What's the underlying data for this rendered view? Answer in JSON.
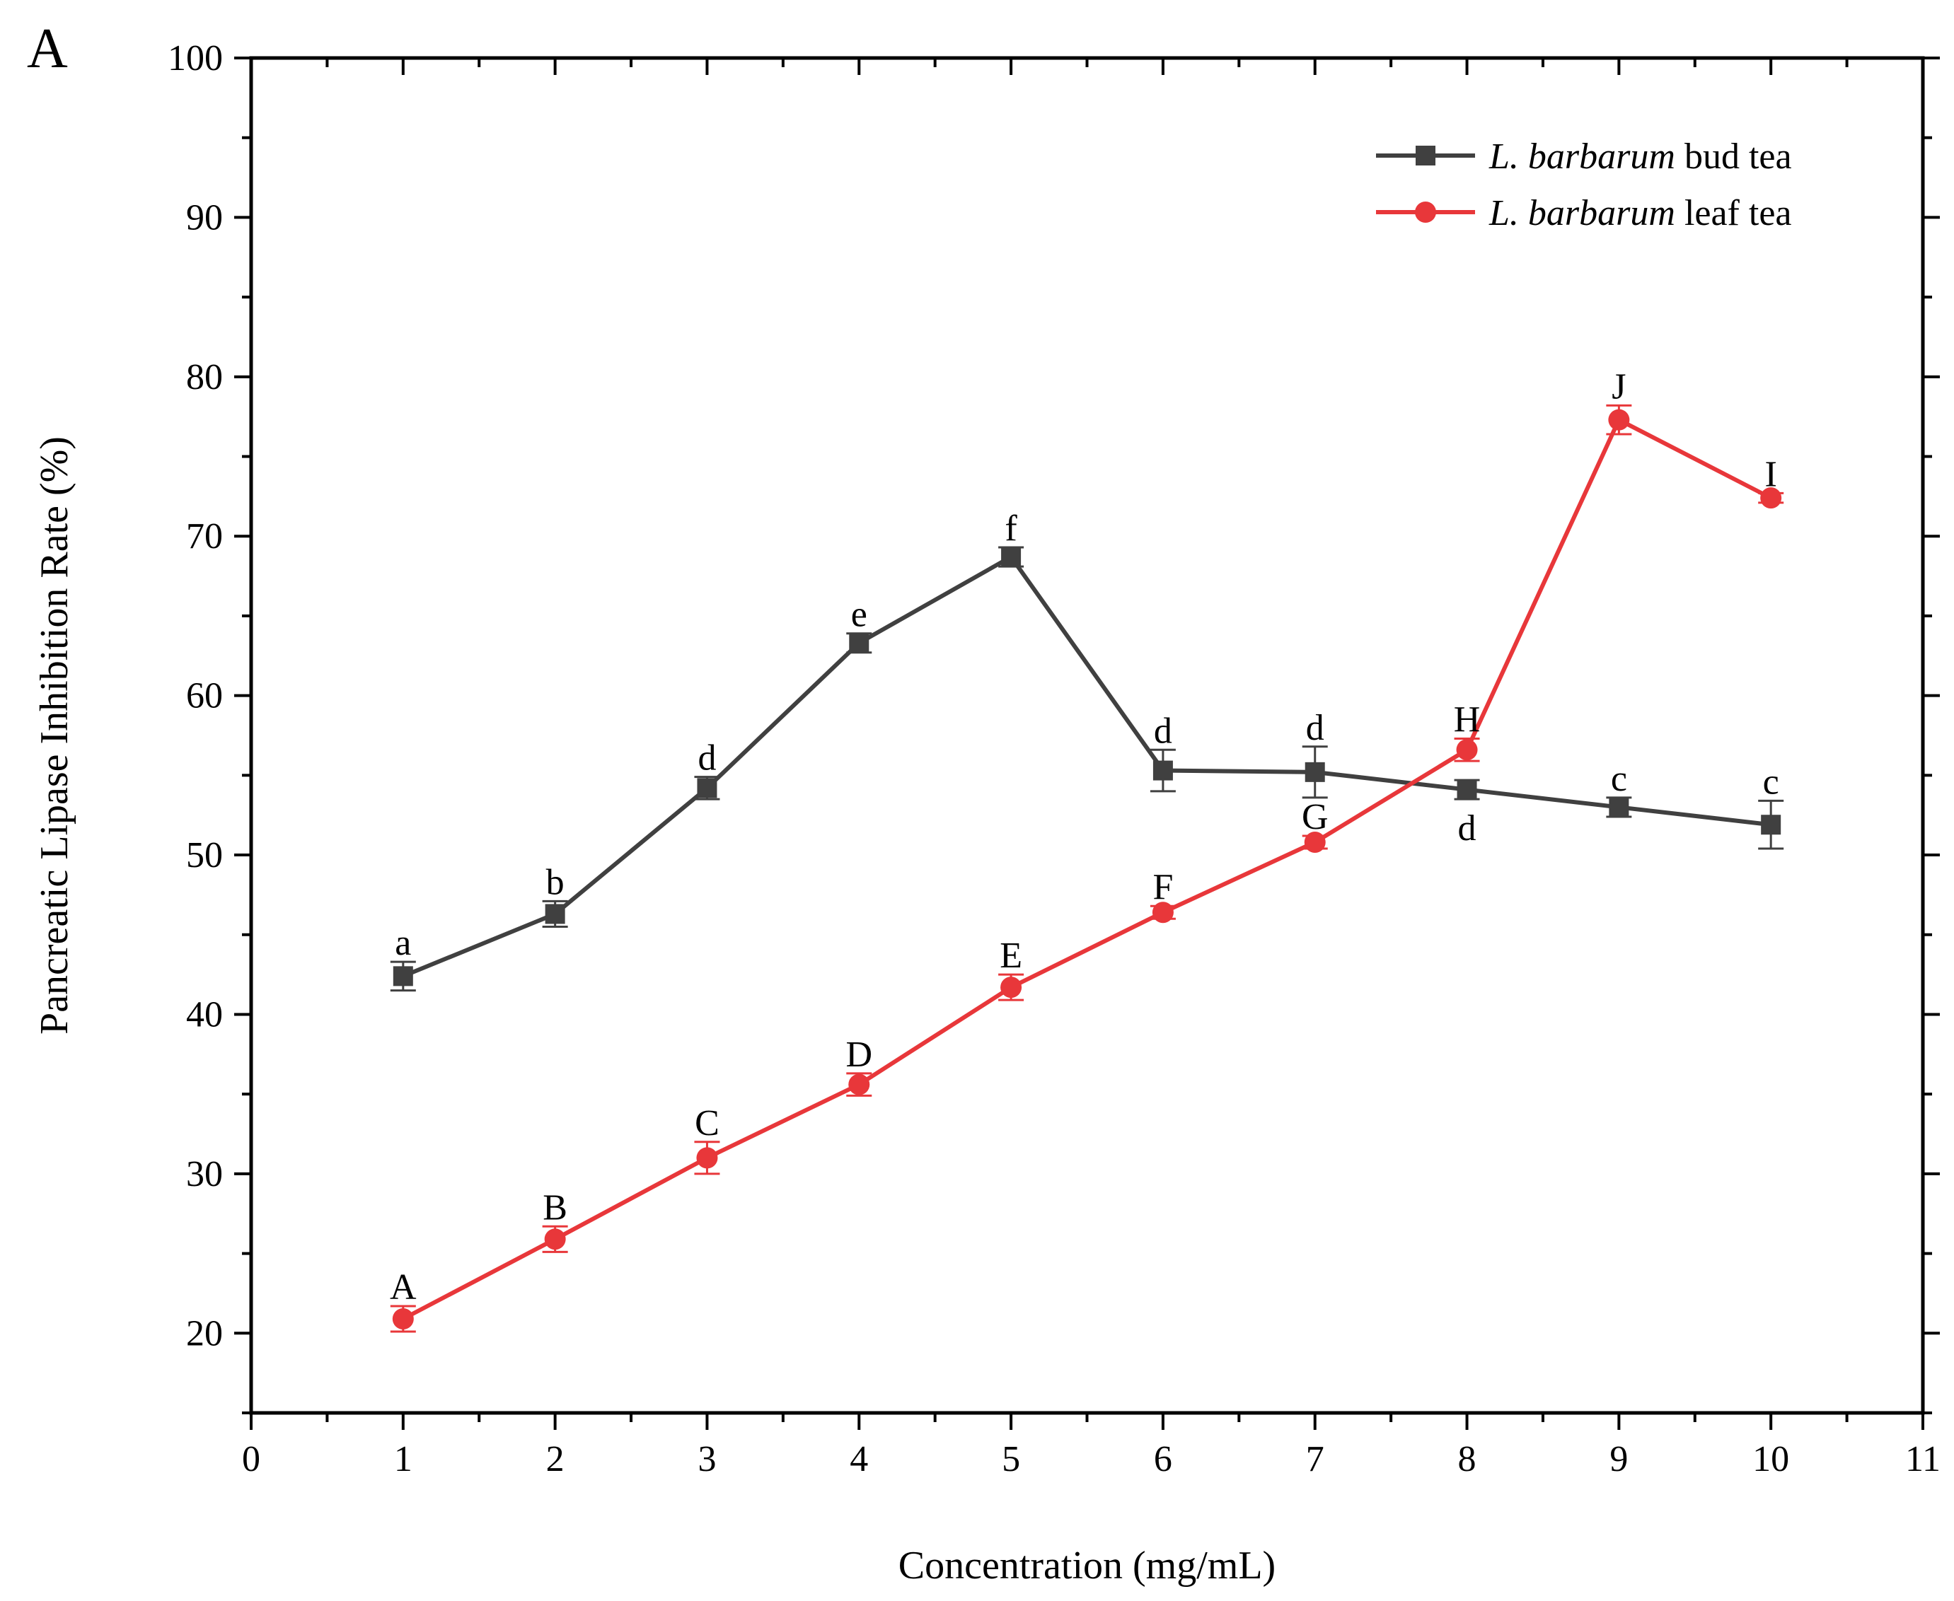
{
  "panel_label": "A",
  "chart_data": {
    "type": "line",
    "title": "",
    "xlabel": "Concentration (mg/mL)",
    "ylabel": "Pancreatic Lipase Inhibition Rate (%)",
    "xlim": [
      0,
      11
    ],
    "ylim": [
      15,
      100
    ],
    "x_ticks": [
      0,
      1,
      2,
      3,
      4,
      5,
      6,
      7,
      8,
      9,
      10,
      11
    ],
    "y_ticks": [
      20,
      30,
      40,
      50,
      60,
      70,
      80,
      90,
      100
    ],
    "x": [
      1,
      2,
      3,
      4,
      5,
      6,
      7,
      8,
      9,
      10
    ],
    "legend_position": "top-right",
    "series": [
      {
        "name": "L. barbarum bud tea",
        "name_italic": "L. barbarum",
        "name_rest": " bud tea",
        "color": "#404040",
        "marker": "square",
        "values": [
          42.4,
          46.3,
          54.2,
          63.3,
          68.7,
          55.3,
          55.2,
          54.1,
          53.0,
          51.9
        ],
        "errors": [
          0.9,
          0.8,
          0.7,
          0.6,
          0.6,
          1.3,
          1.6,
          0.6,
          0.6,
          1.5
        ],
        "labels": [
          "a",
          "b",
          "d",
          "e",
          "f",
          "d",
          "d",
          "d",
          "c",
          "c"
        ],
        "label_positions": [
          "above",
          "above",
          "above",
          "above",
          "above",
          "above",
          "above",
          "below",
          "above",
          "above"
        ]
      },
      {
        "name": "L. barbarum leaf tea",
        "name_italic": "L. barbarum",
        "name_rest": " leaf tea",
        "color": "#e8373a",
        "marker": "circle",
        "values": [
          20.9,
          25.9,
          31.0,
          35.6,
          41.7,
          46.4,
          50.8,
          56.6,
          77.3,
          72.4
        ],
        "errors": [
          0.8,
          0.8,
          1.0,
          0.7,
          0.8,
          0.4,
          0.4,
          0.7,
          0.9,
          0.3
        ],
        "labels": [
          "A",
          "B",
          "C",
          "D",
          "E",
          "F",
          "G",
          "H",
          "J",
          "I"
        ],
        "label_positions": [
          "above",
          "above",
          "above",
          "above",
          "above",
          "above",
          "above",
          "above",
          "above",
          "above"
        ]
      }
    ]
  }
}
